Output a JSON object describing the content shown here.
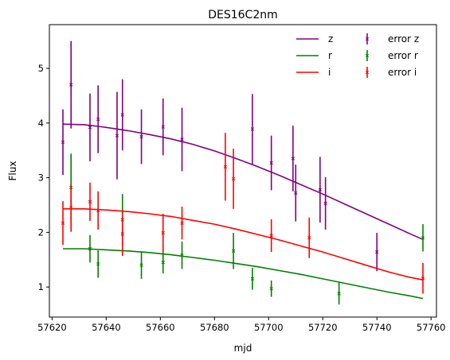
{
  "chart_data": {
    "type": "line",
    "title": "DES16C2nm",
    "xlabel": "mjd",
    "ylabel": "Flux",
    "xlim": [
      57619,
      57762
    ],
    "ylim": [
      0.45,
      5.8
    ],
    "xticks": [
      57620,
      57640,
      57660,
      57680,
      57700,
      57720,
      57740,
      57760
    ],
    "yticks": [
      1,
      2,
      3,
      4,
      5
    ],
    "legend_position": "top-right",
    "series": [
      {
        "name": "z",
        "color": "#800080",
        "fit": {
          "x": [
            57624,
            57632,
            57640,
            57648,
            57656,
            57664,
            57672,
            57680,
            57688,
            57696,
            57704,
            57712,
            57720,
            57728,
            57736,
            57744,
            57752,
            57757
          ],
          "y": [
            3.98,
            3.97,
            3.92,
            3.86,
            3.79,
            3.71,
            3.61,
            3.49,
            3.35,
            3.2,
            3.04,
            2.87,
            2.7,
            2.52,
            2.34,
            2.16,
            1.98,
            1.87
          ]
        },
        "error_label": "error z",
        "points": [
          {
            "x": 57624,
            "y": 3.65,
            "err": 0.6
          },
          {
            "x": 57627,
            "y": 4.7,
            "err": 0.8
          },
          {
            "x": 57634,
            "y": 3.92,
            "err": 0.62
          },
          {
            "x": 57637,
            "y": 4.07,
            "err": 0.62
          },
          {
            "x": 57644,
            "y": 3.77,
            "err": 0.8
          },
          {
            "x": 57646,
            "y": 4.15,
            "err": 0.65
          },
          {
            "x": 57653,
            "y": 3.75,
            "err": 0.5
          },
          {
            "x": 57661,
            "y": 3.93,
            "err": 0.52
          },
          {
            "x": 57668,
            "y": 3.7,
            "err": 0.58
          },
          {
            "x": 57694,
            "y": 3.89,
            "err": 0.64
          },
          {
            "x": 57701,
            "y": 3.27,
            "err": 0.5
          },
          {
            "x": 57709,
            "y": 3.35,
            "err": 0.6
          },
          {
            "x": 57710,
            "y": 2.72,
            "err": 0.52
          },
          {
            "x": 57719,
            "y": 2.78,
            "err": 0.6
          },
          {
            "x": 57721,
            "y": 2.53,
            "err": 0.48
          },
          {
            "x": 57740,
            "y": 1.64,
            "err": 0.35
          }
        ]
      },
      {
        "name": "r",
        "color": "#008000",
        "fit": {
          "x": [
            57624,
            57632,
            57640,
            57648,
            57656,
            57664,
            57672,
            57680,
            57688,
            57696,
            57704,
            57712,
            57720,
            57728,
            57736,
            57744,
            57752,
            57757
          ],
          "y": [
            1.7,
            1.7,
            1.68,
            1.66,
            1.63,
            1.59,
            1.54,
            1.49,
            1.43,
            1.37,
            1.3,
            1.23,
            1.15,
            1.07,
            0.99,
            0.91,
            0.84,
            0.79
          ]
        },
        "error_label": "error r",
        "points": [
          {
            "x": 57627,
            "y": 2.82,
            "err": 0.62
          },
          {
            "x": 57634,
            "y": 1.7,
            "err": 0.25
          },
          {
            "x": 57637,
            "y": 1.42,
            "err": 0.25
          },
          {
            "x": 57646,
            "y": 2.23,
            "err": 0.47
          },
          {
            "x": 57653,
            "y": 1.4,
            "err": 0.25
          },
          {
            "x": 57661,
            "y": 1.45,
            "err": 0.2
          },
          {
            "x": 57668,
            "y": 1.58,
            "err": 0.25
          },
          {
            "x": 57687,
            "y": 1.66,
            "err": 0.33
          },
          {
            "x": 57694,
            "y": 1.15,
            "err": 0.2
          },
          {
            "x": 57701,
            "y": 0.97,
            "err": 0.15
          },
          {
            "x": 57726,
            "y": 0.88,
            "err": 0.2
          },
          {
            "x": 57757,
            "y": 1.9,
            "err": 0.25
          }
        ]
      },
      {
        "name": "i",
        "color": "#ff0000",
        "fit": {
          "x": [
            57624,
            57632,
            57640,
            57648,
            57656,
            57664,
            57672,
            57680,
            57688,
            57696,
            57704,
            57712,
            57720,
            57728,
            57736,
            57744,
            57752,
            57757
          ],
          "y": [
            2.43,
            2.43,
            2.41,
            2.38,
            2.34,
            2.29,
            2.22,
            2.15,
            2.06,
            1.96,
            1.86,
            1.75,
            1.64,
            1.52,
            1.4,
            1.28,
            1.18,
            1.13
          ]
        },
        "error_label": "error i",
        "points": [
          {
            "x": 57624,
            "y": 2.17,
            "err": 0.4
          },
          {
            "x": 57627,
            "y": 2.45,
            "err": 0.44
          },
          {
            "x": 57634,
            "y": 2.56,
            "err": 0.35
          },
          {
            "x": 57637,
            "y": 2.4,
            "err": 0.35
          },
          {
            "x": 57646,
            "y": 1.97,
            "err": 0.4
          },
          {
            "x": 57661,
            "y": 1.99,
            "err": 0.35
          },
          {
            "x": 57668,
            "y": 2.17,
            "err": 0.3
          },
          {
            "x": 57684,
            "y": 3.2,
            "err": 0.62
          },
          {
            "x": 57687,
            "y": 2.98,
            "err": 0.55
          },
          {
            "x": 57701,
            "y": 1.94,
            "err": 0.3
          },
          {
            "x": 57715,
            "y": 1.9,
            "err": 0.37
          },
          {
            "x": 57757,
            "y": 1.16,
            "err": 0.28
          }
        ]
      }
    ]
  }
}
